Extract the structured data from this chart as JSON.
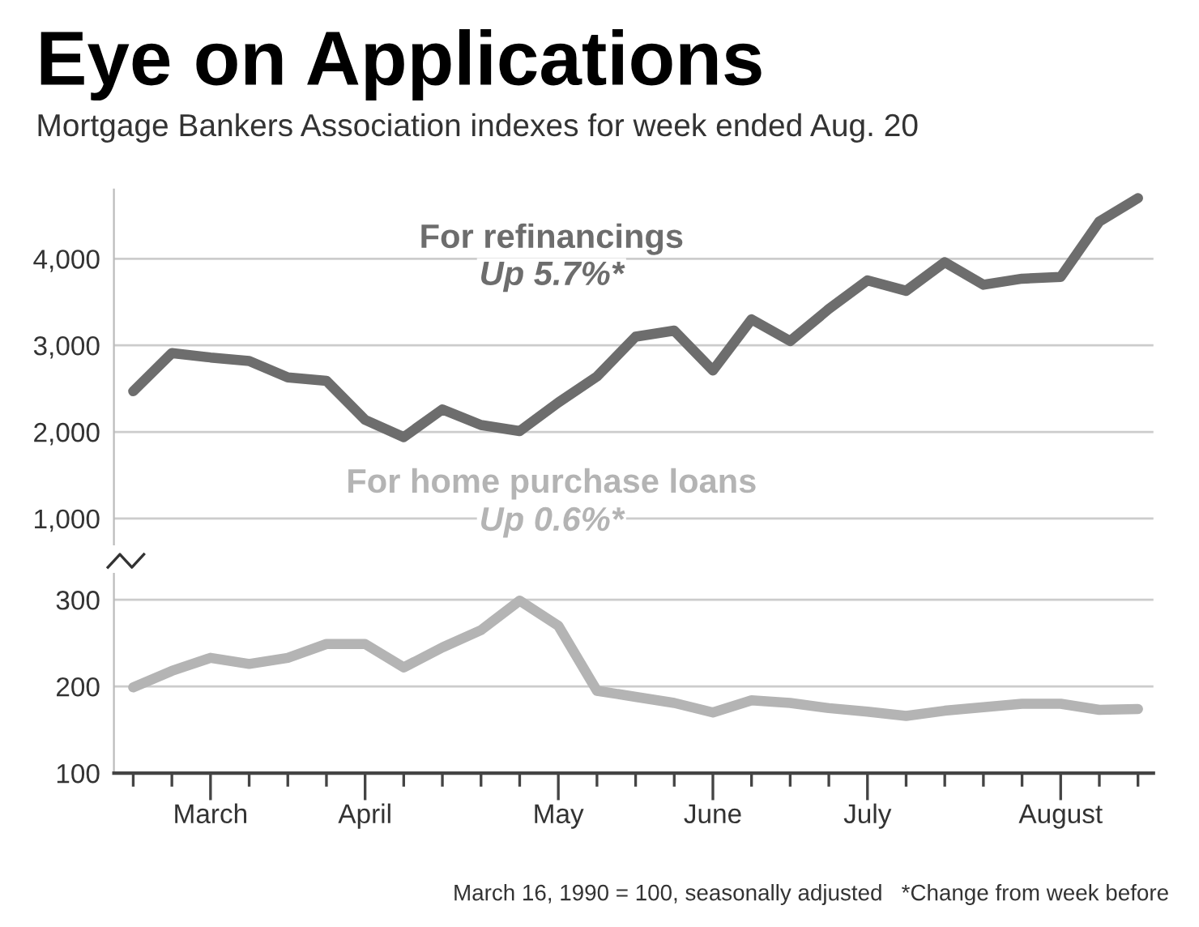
{
  "chart_data": [
    {
      "type": "line",
      "title": "Eye on Applications",
      "subtitle": "Mortgage Bankers Association indexes for week ended Aug. 20",
      "series": [
        {
          "name": "For refinancings",
          "color": "#6d6d6d",
          "values": [
            2470,
            2910,
            2860,
            2820,
            2630,
            2590,
            2140,
            1940,
            2260,
            2080,
            2010,
            2340,
            2640,
            3100,
            3170,
            2710,
            3300,
            3050,
            3420,
            3750,
            3630,
            3960,
            3700,
            3770,
            3790,
            4430,
            4700
          ]
        }
      ],
      "ylim": [
        700,
        4800
      ],
      "yticks": [
        {
          "value": 1000,
          "label": "1,000"
        },
        {
          "value": 2000,
          "label": "2,000"
        },
        {
          "value": 3000,
          "label": "3,000"
        },
        {
          "value": 4000,
          "label": "4,000"
        }
      ],
      "grid": "y",
      "tick_labels": "y",
      "line_style": "solid",
      "marker": "none",
      "annotations": [
        "Up 5.7%*"
      ]
    },
    {
      "type": "line",
      "categories": [
        null,
        null,
        "March",
        null,
        null,
        null,
        "April",
        null,
        null,
        null,
        null,
        "May",
        null,
        null,
        null,
        "June",
        null,
        null,
        null,
        "July",
        null,
        null,
        null,
        null,
        "August",
        null,
        null
      ],
      "series": [
        {
          "name": "For home purchase loans",
          "color": "#b4b4b4",
          "values": [
            199,
            218,
            233,
            226,
            233,
            249,
            249,
            222,
            245,
            265,
            299,
            270,
            195,
            188,
            181,
            170,
            184,
            181,
            175,
            171,
            166,
            172,
            176,
            180,
            180,
            173,
            174
          ]
        }
      ],
      "ylim": [
        100,
        330
      ],
      "yticks": [
        100,
        200,
        300
      ],
      "grid": "y",
      "line_style": "solid",
      "marker": "none",
      "annotations": [
        "Up 0.6%*",
        "March 16, 1990 = 100, seasonally adjusted   *Change from week before"
      ]
    }
  ]
}
